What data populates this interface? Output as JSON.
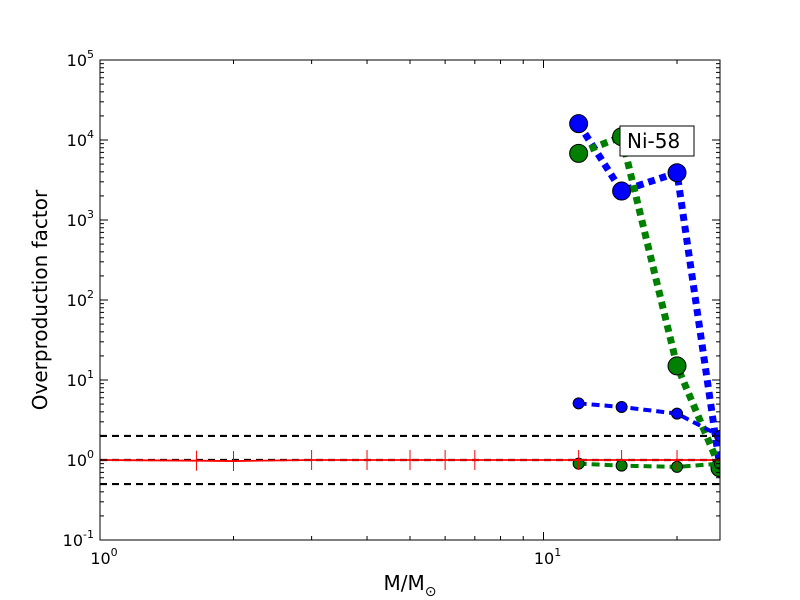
{
  "chart_data": {
    "type": "line",
    "title": "",
    "xlabel": "M/M",
    "xlabel_subscript": "⊙",
    "ylabel": "Overproduction factor",
    "xscale": "log",
    "yscale": "log",
    "xlim": [
      1,
      25
    ],
    "ylim": [
      0.1,
      100000
    ],
    "grid": false,
    "x_ticks": [
      {
        "value": 1,
        "base": "10",
        "exp": "0"
      },
      {
        "value": 10,
        "base": "10",
        "exp": "1"
      }
    ],
    "y_ticks": [
      {
        "value": 0.1,
        "base": "10",
        "exp": "-1"
      },
      {
        "value": 1,
        "base": "10",
        "exp": "0"
      },
      {
        "value": 10,
        "base": "10",
        "exp": "1"
      },
      {
        "value": 100,
        "base": "10",
        "exp": "2"
      },
      {
        "value": 1000,
        "base": "10",
        "exp": "3"
      },
      {
        "value": 10000,
        "base": "10",
        "exp": "4"
      },
      {
        "value": 100000,
        "base": "10",
        "exp": "5"
      }
    ],
    "annotation": "Ni-58",
    "reference_lines": [
      0.5,
      1,
      2
    ],
    "series": [
      {
        "color": "#0000ff",
        "style": "dotted-thick",
        "marker": "large-circle",
        "x": [
          12,
          15,
          20,
          25
        ],
        "y": [
          16000,
          2300,
          3900,
          0.8
        ]
      },
      {
        "color": "#008000",
        "style": "dotted-thick",
        "marker": "large-circle",
        "x": [
          12,
          15,
          20,
          25
        ],
        "y": [
          6800,
          11000,
          15,
          0.8
        ]
      },
      {
        "color": "#0000ff",
        "style": "dashed",
        "marker": "small-circle",
        "x": [
          12,
          15,
          20,
          25
        ],
        "y": [
          5.1,
          4.6,
          3.8,
          2.0
        ]
      },
      {
        "color": "#008000",
        "style": "dashed",
        "marker": "small-circle",
        "x": [
          12,
          15,
          20,
          25
        ],
        "y": [
          0.9,
          0.85,
          0.82,
          0.9
        ]
      },
      {
        "color": "#ff0000",
        "style": "solid",
        "marker": "vertical-tick",
        "x": [
          1,
          1.65,
          2,
          3,
          4,
          5,
          6,
          7,
          12,
          15,
          20,
          25
        ],
        "y": [
          1,
          0.98,
          0.97,
          1,
          1,
          1,
          1,
          1,
          1,
          1,
          1,
          1
        ]
      }
    ]
  }
}
